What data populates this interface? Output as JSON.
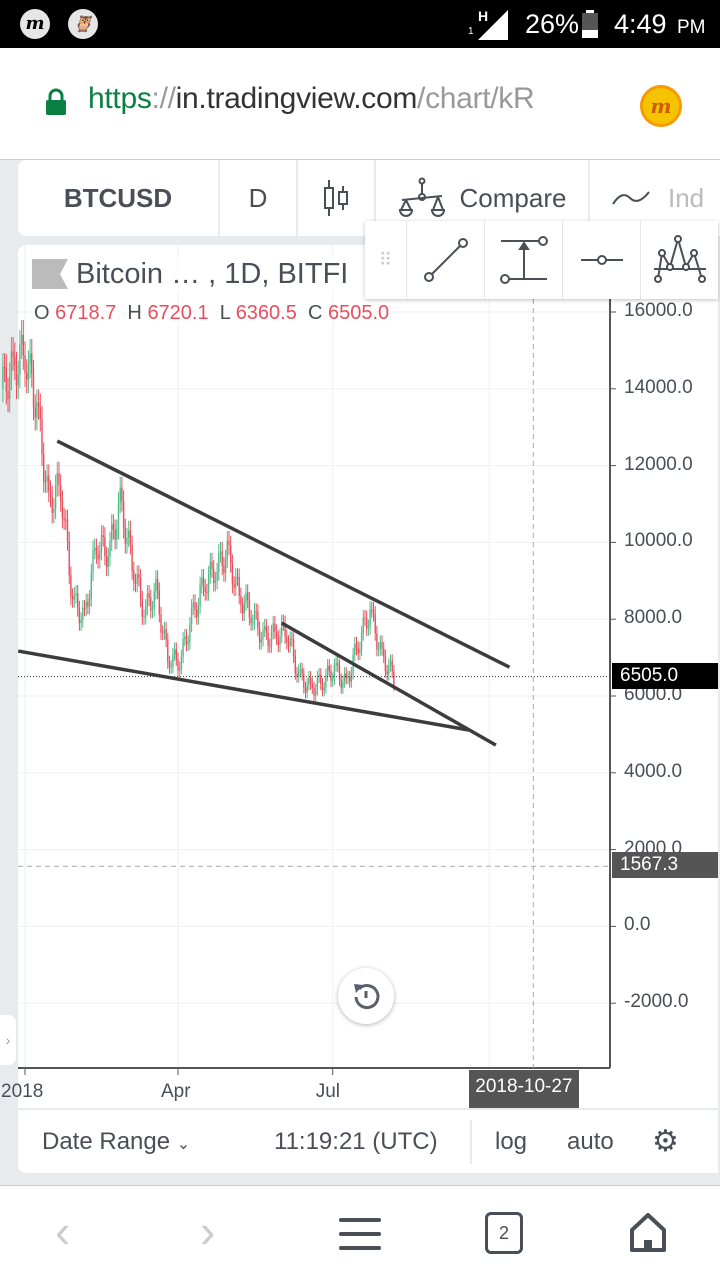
{
  "status_bar": {
    "battery": "26%",
    "time": "4:49",
    "ampm": "PM",
    "network": "H",
    "sim": "1"
  },
  "browser": {
    "url_scheme": "https",
    "url_sep": "://",
    "url_host": "in.tradingview.com",
    "url_path": "/chart/kR",
    "colors": {
      "scheme": "#0b8043",
      "lock": "#0b8043"
    }
  },
  "toolbar": {
    "symbol": "BTCUSD",
    "interval": "D",
    "compare": "Compare",
    "indicators": "Ind"
  },
  "drawing_tools": [
    "trend-line-icon",
    "price-range-icon",
    "horizontal-ray-icon",
    "pattern-icon"
  ],
  "legend": {
    "title": "Bitcoin … , 1D, BITFI",
    "o_label": "O",
    "o": "6718.7",
    "h_label": "H",
    "h": "6720.1",
    "l_label": "L",
    "l": "6360.5",
    "c_label": "C",
    "c": "6505.0"
  },
  "price_axis": {
    "ticks": [
      "16000.0",
      "14000.0",
      "12000.0",
      "10000.0",
      "8000.0",
      "6000.0",
      "4000.0",
      "2000.0",
      "0.0",
      "-2000.0"
    ],
    "last_price": "6505.0",
    "crosshair_price": "1567.3"
  },
  "time_axis": {
    "ticks": [
      "2018",
      "Apr",
      "Jul"
    ],
    "crosshair_date": "2018-10-27"
  },
  "bottom_bar": {
    "date_range": "Date Range",
    "clock": "11:19:21 (UTC)",
    "log": "log",
    "auto": "auto"
  },
  "nav": {
    "tabs": "2"
  },
  "chart_data": {
    "type": "candlestick",
    "symbol": "BTCUSD",
    "interval": "1D",
    "ylim": [
      -3500,
      17500
    ],
    "weekly_closes": [
      [
        "2017-12-18",
        14000
      ],
      [
        "2017-12-25",
        14500
      ],
      [
        "2018-01-01",
        15000
      ],
      [
        "2018-01-08",
        13500
      ],
      [
        "2018-01-15",
        11000
      ],
      [
        "2018-01-22",
        11500
      ],
      [
        "2018-01-29",
        8500
      ],
      [
        "2018-02-05",
        8000
      ],
      [
        "2018-02-12",
        10000
      ],
      [
        "2018-02-19",
        9700
      ],
      [
        "2018-02-26",
        11000
      ],
      [
        "2018-03-05",
        9500
      ],
      [
        "2018-03-12",
        8200
      ],
      [
        "2018-03-19",
        8700
      ],
      [
        "2018-03-26",
        7000
      ],
      [
        "2018-04-02",
        6900
      ],
      [
        "2018-04-09",
        8000
      ],
      [
        "2018-04-16",
        8900
      ],
      [
        "2018-04-23",
        9300
      ],
      [
        "2018-04-30",
        9700
      ],
      [
        "2018-05-07",
        8600
      ],
      [
        "2018-05-14",
        8200
      ],
      [
        "2018-05-21",
        7500
      ],
      [
        "2018-05-28",
        7600
      ],
      [
        "2018-06-04",
        7700
      ],
      [
        "2018-06-11",
        6500
      ],
      [
        "2018-06-18",
        6200
      ],
      [
        "2018-06-25",
        6400
      ],
      [
        "2018-07-02",
        6700
      ],
      [
        "2018-07-09",
        6300
      ],
      [
        "2018-07-16",
        7400
      ],
      [
        "2018-07-23",
        8200
      ],
      [
        "2018-07-30",
        7000
      ],
      [
        "2018-08-06",
        6505
      ]
    ],
    "drawings": [
      {
        "type": "trend_line",
        "from": [
          "2018-01-20",
          12640
        ],
        "to": [
          "2018-10-13",
          6750
        ]
      },
      {
        "type": "trend_line",
        "from": [
          "2017-12-28",
          7170
        ],
        "to": [
          "2018-09-19",
          5115
        ]
      },
      {
        "type": "trend_line",
        "from": [
          "2018-06-01",
          7900
        ],
        "to": [
          "2018-10-05",
          4720
        ]
      }
    ],
    "last_price_line": 6505.0,
    "crosshair": {
      "date": "2018-10-27",
      "price": 1567.3
    },
    "colors": {
      "up": "#53b987",
      "down": "#eb4d5c",
      "lines": "#3c3c3c",
      "price_label": "#000000",
      "crosshair_label": "#555555"
    }
  }
}
